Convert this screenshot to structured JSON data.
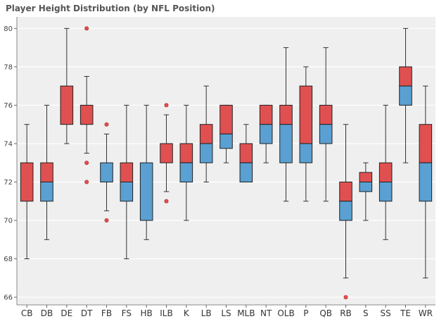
{
  "chart_data": {
    "type": "boxplot",
    "title": "Player Height Distribution (by NFL Position)",
    "xlabel": "",
    "ylabel": "",
    "ylim": [
      65.6,
      80.6
    ],
    "yticks": [
      66,
      68,
      70,
      72,
      74,
      76,
      78,
      80
    ],
    "grid": true,
    "legend": "none",
    "colors": {
      "upper_box": "#e05050",
      "lower_box": "#5aa0d2",
      "outlier": "#e05050",
      "plot_background": "#efefef",
      "grid": "#ffffff",
      "whisker": "#333333"
    },
    "categories": [
      "CB",
      "DB",
      "DE",
      "DT",
      "FB",
      "FS",
      "HB",
      "ILB",
      "K",
      "LB",
      "LS",
      "MLB",
      "NT",
      "OLB",
      "P",
      "QB",
      "RB",
      "S",
      "SS",
      "TE",
      "WR"
    ],
    "boxes": [
      {
        "category": "CB",
        "lower_whisker": 68,
        "q1": 71,
        "median": 71,
        "q3": 73,
        "upper_whisker": 75,
        "outliers": []
      },
      {
        "category": "DB",
        "lower_whisker": 69,
        "q1": 71,
        "median": 72,
        "q3": 73,
        "upper_whisker": 76,
        "outliers": []
      },
      {
        "category": "DE",
        "lower_whisker": 74,
        "q1": 75,
        "median": 75,
        "q3": 77,
        "upper_whisker": 80,
        "outliers": []
      },
      {
        "category": "DT",
        "lower_whisker": 73.5,
        "q1": 75,
        "median": 75,
        "q3": 76,
        "upper_whisker": 77.5,
        "outliers": [
          80,
          73,
          72
        ]
      },
      {
        "category": "FB",
        "lower_whisker": 70.5,
        "q1": 72,
        "median": 73,
        "q3": 73,
        "upper_whisker": 74.5,
        "outliers": [
          75,
          70
        ]
      },
      {
        "category": "FS",
        "lower_whisker": 68,
        "q1": 71,
        "median": 72,
        "q3": 73,
        "upper_whisker": 76,
        "outliers": []
      },
      {
        "category": "HB",
        "lower_whisker": 69,
        "q1": 70,
        "median": 73,
        "q3": 73,
        "upper_whisker": 76,
        "outliers": []
      },
      {
        "category": "ILB",
        "lower_whisker": 71.5,
        "q1": 73,
        "median": 73,
        "q3": 74,
        "upper_whisker": 75.5,
        "outliers": [
          76,
          71
        ]
      },
      {
        "category": "K",
        "lower_whisker": 70,
        "q1": 72,
        "median": 73,
        "q3": 74,
        "upper_whisker": 76,
        "outliers": []
      },
      {
        "category": "LB",
        "lower_whisker": 72,
        "q1": 73,
        "median": 74,
        "q3": 75,
        "upper_whisker": 77,
        "outliers": []
      },
      {
        "category": "LS",
        "lower_whisker": 73,
        "q1": 73.75,
        "median": 74.5,
        "q3": 76,
        "upper_whisker": 76,
        "outliers": []
      },
      {
        "category": "MLB",
        "lower_whisker": 72,
        "q1": 72,
        "median": 73,
        "q3": 74,
        "upper_whisker": 75,
        "outliers": []
      },
      {
        "category": "NT",
        "lower_whisker": 73,
        "q1": 74,
        "median": 75,
        "q3": 76,
        "upper_whisker": 76,
        "outliers": []
      },
      {
        "category": "OLB",
        "lower_whisker": 71,
        "q1": 73,
        "median": 75,
        "q3": 76,
        "upper_whisker": 79,
        "outliers": []
      },
      {
        "category": "P",
        "lower_whisker": 71,
        "q1": 73,
        "median": 74,
        "q3": 77,
        "upper_whisker": 78,
        "outliers": []
      },
      {
        "category": "QB",
        "lower_whisker": 71,
        "q1": 74,
        "median": 75,
        "q3": 76,
        "upper_whisker": 79,
        "outliers": []
      },
      {
        "category": "RB",
        "lower_whisker": 67,
        "q1": 70,
        "median": 71,
        "q3": 72,
        "upper_whisker": 75,
        "outliers": [
          66
        ]
      },
      {
        "category": "S",
        "lower_whisker": 70,
        "q1": 71.5,
        "median": 72,
        "q3": 72.5,
        "upper_whisker": 73,
        "outliers": []
      },
      {
        "category": "SS",
        "lower_whisker": 69,
        "q1": 71,
        "median": 72,
        "q3": 73,
        "upper_whisker": 76,
        "outliers": []
      },
      {
        "category": "TE",
        "lower_whisker": 73,
        "q1": 76,
        "median": 77,
        "q3": 78,
        "upper_whisker": 80,
        "outliers": []
      },
      {
        "category": "WR",
        "lower_whisker": 67,
        "q1": 71,
        "median": 73,
        "q3": 75,
        "upper_whisker": 77,
        "outliers": []
      }
    ]
  }
}
